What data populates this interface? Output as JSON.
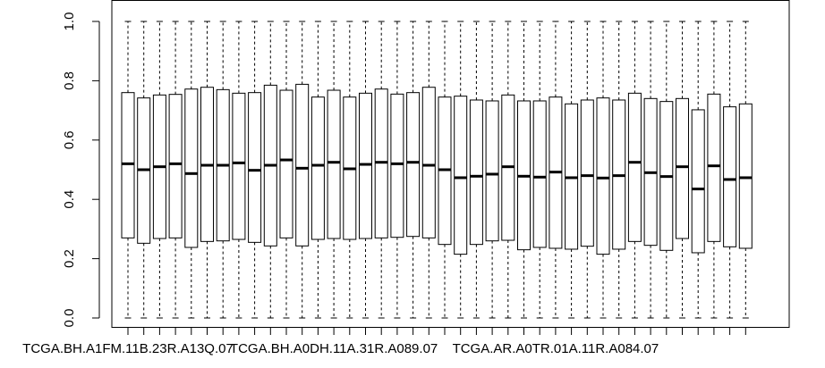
{
  "chart_data": {
    "type": "boxplot",
    "title": "",
    "xlabel": "",
    "ylabel": "",
    "ylim": [
      0,
      1
    ],
    "yticks": [
      0.0,
      0.2,
      0.4,
      0.6,
      0.8,
      1.0
    ],
    "ytick_labels": [
      "0.0",
      "0.2",
      "0.4",
      "0.6",
      "0.8",
      "1.0"
    ],
    "grid": false,
    "legend": "none",
    "colors": {
      "box_fill": "#ffffff",
      "stroke": "#000000"
    },
    "visible_x_labels": [
      {
        "index": 0,
        "label": "TCGA.BH.A1FM.11B.23R.A13Q.07"
      },
      {
        "index": 13,
        "label": "TCGA.BH.A0DH.11A.31R.A089.07"
      },
      {
        "index": 27,
        "label": "TCGA.AR.A0TR.01A.11R.A084.07"
      }
    ],
    "boxes": [
      {
        "q1": 0.27,
        "median": 0.52,
        "q3": 0.76,
        "whisker_low": 0.0,
        "whisker_high": 1.0
      },
      {
        "q1": 0.252,
        "median": 0.5,
        "q3": 0.742,
        "whisker_low": 0.0,
        "whisker_high": 1.0
      },
      {
        "q1": 0.268,
        "median": 0.51,
        "q3": 0.752,
        "whisker_low": 0.0,
        "whisker_high": 1.0
      },
      {
        "q1": 0.27,
        "median": 0.52,
        "q3": 0.754,
        "whisker_low": 0.0,
        "whisker_high": 1.0
      },
      {
        "q1": 0.238,
        "median": 0.487,
        "q3": 0.772,
        "whisker_low": 0.0,
        "whisker_high": 1.0
      },
      {
        "q1": 0.258,
        "median": 0.515,
        "q3": 0.778,
        "whisker_low": 0.0,
        "whisker_high": 1.0
      },
      {
        "q1": 0.26,
        "median": 0.515,
        "q3": 0.77,
        "whisker_low": 0.0,
        "whisker_high": 1.0
      },
      {
        "q1": 0.265,
        "median": 0.523,
        "q3": 0.758,
        "whisker_low": 0.0,
        "whisker_high": 1.0
      },
      {
        "q1": 0.255,
        "median": 0.498,
        "q3": 0.76,
        "whisker_low": 0.0,
        "whisker_high": 1.0
      },
      {
        "q1": 0.243,
        "median": 0.515,
        "q3": 0.785,
        "whisker_low": 0.0,
        "whisker_high": 1.0
      },
      {
        "q1": 0.27,
        "median": 0.533,
        "q3": 0.768,
        "whisker_low": 0.0,
        "whisker_high": 1.0
      },
      {
        "q1": 0.243,
        "median": 0.505,
        "q3": 0.788,
        "whisker_low": 0.0,
        "whisker_high": 1.0
      },
      {
        "q1": 0.265,
        "median": 0.515,
        "q3": 0.745,
        "whisker_low": 0.0,
        "whisker_high": 1.0
      },
      {
        "q1": 0.268,
        "median": 0.525,
        "q3": 0.768,
        "whisker_low": 0.0,
        "whisker_high": 1.0
      },
      {
        "q1": 0.265,
        "median": 0.503,
        "q3": 0.745,
        "whisker_low": 0.0,
        "whisker_high": 1.0
      },
      {
        "q1": 0.268,
        "median": 0.518,
        "q3": 0.758,
        "whisker_low": 0.0,
        "whisker_high": 1.0
      },
      {
        "q1": 0.27,
        "median": 0.525,
        "q3": 0.772,
        "whisker_low": 0.0,
        "whisker_high": 1.0
      },
      {
        "q1": 0.272,
        "median": 0.52,
        "q3": 0.755,
        "whisker_low": 0.0,
        "whisker_high": 1.0
      },
      {
        "q1": 0.275,
        "median": 0.525,
        "q3": 0.76,
        "whisker_low": 0.0,
        "whisker_high": 1.0
      },
      {
        "q1": 0.27,
        "median": 0.515,
        "q3": 0.778,
        "whisker_low": 0.0,
        "whisker_high": 1.0
      },
      {
        "q1": 0.248,
        "median": 0.5,
        "q3": 0.745,
        "whisker_low": 0.0,
        "whisker_high": 1.0
      },
      {
        "q1": 0.215,
        "median": 0.473,
        "q3": 0.748,
        "whisker_low": 0.0,
        "whisker_high": 1.0
      },
      {
        "q1": 0.248,
        "median": 0.478,
        "q3": 0.735,
        "whisker_low": 0.0,
        "whisker_high": 1.0
      },
      {
        "q1": 0.26,
        "median": 0.485,
        "q3": 0.732,
        "whisker_low": 0.0,
        "whisker_high": 1.0
      },
      {
        "q1": 0.262,
        "median": 0.51,
        "q3": 0.752,
        "whisker_low": 0.0,
        "whisker_high": 1.0
      },
      {
        "q1": 0.23,
        "median": 0.478,
        "q3": 0.732,
        "whisker_low": 0.0,
        "whisker_high": 1.0
      },
      {
        "q1": 0.238,
        "median": 0.475,
        "q3": 0.732,
        "whisker_low": 0.0,
        "whisker_high": 1.0
      },
      {
        "q1": 0.235,
        "median": 0.492,
        "q3": 0.745,
        "whisker_low": 0.0,
        "whisker_high": 1.0
      },
      {
        "q1": 0.232,
        "median": 0.473,
        "q3": 0.722,
        "whisker_low": 0.0,
        "whisker_high": 1.0
      },
      {
        "q1": 0.242,
        "median": 0.48,
        "q3": 0.735,
        "whisker_low": 0.0,
        "whisker_high": 1.0
      },
      {
        "q1": 0.215,
        "median": 0.472,
        "q3": 0.742,
        "whisker_low": 0.0,
        "whisker_high": 1.0
      },
      {
        "q1": 0.232,
        "median": 0.48,
        "q3": 0.735,
        "whisker_low": 0.0,
        "whisker_high": 1.0
      },
      {
        "q1": 0.258,
        "median": 0.525,
        "q3": 0.758,
        "whisker_low": 0.0,
        "whisker_high": 1.0
      },
      {
        "q1": 0.245,
        "median": 0.49,
        "q3": 0.74,
        "whisker_low": 0.0,
        "whisker_high": 1.0
      },
      {
        "q1": 0.228,
        "median": 0.477,
        "q3": 0.73,
        "whisker_low": 0.0,
        "whisker_high": 1.0
      },
      {
        "q1": 0.268,
        "median": 0.51,
        "q3": 0.74,
        "whisker_low": 0.0,
        "whisker_high": 1.0
      },
      {
        "q1": 0.22,
        "median": 0.435,
        "q3": 0.702,
        "whisker_low": 0.0,
        "whisker_high": 1.0
      },
      {
        "q1": 0.258,
        "median": 0.513,
        "q3": 0.755,
        "whisker_low": 0.0,
        "whisker_high": 1.0
      },
      {
        "q1": 0.24,
        "median": 0.467,
        "q3": 0.712,
        "whisker_low": 0.0,
        "whisker_high": 1.0
      },
      {
        "q1": 0.235,
        "median": 0.473,
        "q3": 0.722,
        "whisker_low": 0.0,
        "whisker_high": 1.0
      }
    ]
  }
}
